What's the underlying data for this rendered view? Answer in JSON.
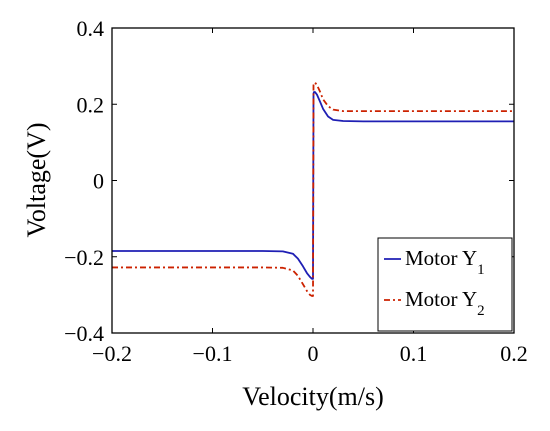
{
  "chart_data": {
    "type": "line",
    "xlabel": "Velocity(m/s)",
    "ylabel": "Voltage(V)",
    "xlim": [
      -0.2,
      0.2
    ],
    "ylim": [
      -0.4,
      0.4
    ],
    "xticks": [
      -0.2,
      -0.1,
      0,
      0.1,
      0.2
    ],
    "xtick_labels": [
      "−0.2",
      "−0.1",
      "0",
      "0.1",
      "0.2"
    ],
    "yticks": [
      -0.4,
      -0.2,
      0,
      0.2,
      0.4
    ],
    "ytick_labels": [
      "−0.4",
      "−0.2",
      "0",
      "0.2",
      "0.4"
    ],
    "grid": false,
    "legend_position": "bottom-right",
    "series": [
      {
        "name_base": "Motor Y",
        "name_sub": "1",
        "color": "#1f1fb4",
        "style": "solid",
        "x": [
          -0.2,
          -0.15,
          -0.1,
          -0.05,
          -0.03,
          -0.02,
          -0.015,
          -0.01,
          -0.006,
          -0.003,
          -0.001,
          0.0,
          0.0005,
          0.001,
          0.002,
          0.004,
          0.007,
          0.01,
          0.015,
          0.02,
          0.03,
          0.05,
          0.1,
          0.15,
          0.2
        ],
        "y": [
          -0.185,
          -0.185,
          -0.185,
          -0.185,
          -0.186,
          -0.192,
          -0.205,
          -0.225,
          -0.243,
          -0.253,
          -0.258,
          -0.258,
          0.228,
          0.232,
          0.232,
          0.225,
          0.207,
          0.188,
          0.168,
          0.159,
          0.156,
          0.155,
          0.155,
          0.155,
          0.155
        ]
      },
      {
        "name_base": "Motor Y",
        "name_sub": "2",
        "color": "#cc2200",
        "style": "dashdot",
        "x": [
          -0.2,
          -0.15,
          -0.1,
          -0.05,
          -0.03,
          -0.02,
          -0.015,
          -0.01,
          -0.006,
          -0.003,
          -0.001,
          0.0,
          0.0005,
          0.001,
          0.002,
          0.004,
          0.007,
          0.01,
          0.015,
          0.02,
          0.03,
          0.05,
          0.1,
          0.15,
          0.2
        ],
        "y": [
          -0.228,
          -0.228,
          -0.228,
          -0.228,
          -0.229,
          -0.236,
          -0.25,
          -0.272,
          -0.29,
          -0.3,
          -0.303,
          -0.303,
          0.252,
          0.256,
          0.257,
          0.25,
          0.233,
          0.213,
          0.195,
          0.186,
          0.182,
          0.182,
          0.182,
          0.182,
          0.182
        ]
      }
    ]
  }
}
